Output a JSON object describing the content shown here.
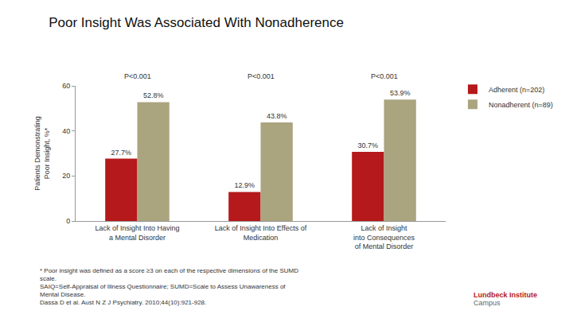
{
  "chart_data": {
    "type": "bar",
    "title": "Poor Insight Was Associated With Nonadherence",
    "y_label": "Patients Demonstrating\nPoor Insight, %*",
    "categories": [
      "Lack of Insight Into Having\na Mental Disorder",
      "Lack of Insight Into Effects of\nMedication",
      "Lack of Insight\ninto Consequences\nof Mental Disorder"
    ],
    "series": [
      {
        "name": "Adherent (n=202)",
        "color": "#b5191b",
        "values": [
          27.7,
          12.9,
          30.7
        ],
        "value_labels": [
          "27.7%",
          "12.9%",
          "30.7%"
        ]
      },
      {
        "name": "Nonadherent (n=89)",
        "color": "#aaa47f",
        "values": [
          52.8,
          43.8,
          53.9
        ],
        "value_labels": [
          "52.8%",
          "43.8%",
          "53.9%"
        ]
      }
    ],
    "annotations": [
      {
        "text": "P<0.001",
        "category": "Lack of Insight Into Having\na Mental Disorder"
      },
      {
        "text": "P<0.001",
        "category": "Lack of Insight Into Effects of\nMedication"
      },
      {
        "text": "P<0.001",
        "category": "Lack of Insight\ninto Consequences\nof Mental Disorder"
      }
    ],
    "ylim": [
      0,
      60
    ],
    "yticks": [
      0,
      20,
      40,
      60
    ],
    "grid": false,
    "legend": "upper right",
    "data_labels": true
  },
  "footer": {
    "notes": [
      "* Poor insight was defined as a score ≥3 on each of the respective dimensions of the SUMD scale.",
      "SAIQ=Self-Appraisal of Illness Questionnaire; SUMD=Scale to Assess Unawareness of Mental Disease.",
      "Dassa D et al. Aust N Z J Psychiatry. 2010;44(10):921-928."
    ],
    "logo": [
      "Lundbeck Institute",
      "Campus"
    ]
  }
}
